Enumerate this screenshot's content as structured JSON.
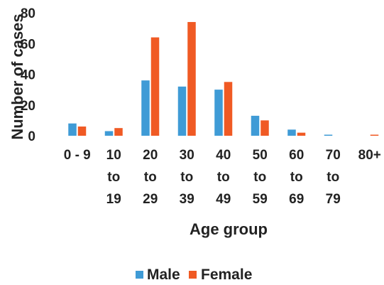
{
  "chart_data": {
    "type": "bar",
    "title": "",
    "xlabel": "Age group",
    "ylabel": "Number of cases",
    "ylim": [
      0,
      80
    ],
    "yticks": [
      "0",
      "20",
      "40",
      "60",
      "80"
    ],
    "categories": [
      [
        "0 - 9"
      ],
      [
        "10",
        "to",
        "19"
      ],
      [
        "20",
        "to",
        "29"
      ],
      [
        "30",
        "to",
        "39"
      ],
      [
        "40",
        "to",
        "49"
      ],
      [
        "50",
        "to",
        "59"
      ],
      [
        "60",
        "to",
        "69"
      ],
      [
        "70",
        "to",
        "79"
      ],
      [
        "80+"
      ]
    ],
    "series": [
      {
        "name": "Male",
        "color": "#3f9bd6",
        "values": [
          8,
          3,
          36,
          32,
          30,
          13,
          4,
          0.5,
          0
        ]
      },
      {
        "name": "Female",
        "color": "#f05a24",
        "values": [
          6,
          5,
          64,
          74,
          35,
          10,
          2,
          0,
          0.5
        ]
      }
    ],
    "grid": false,
    "legend_position": "bottom"
  }
}
